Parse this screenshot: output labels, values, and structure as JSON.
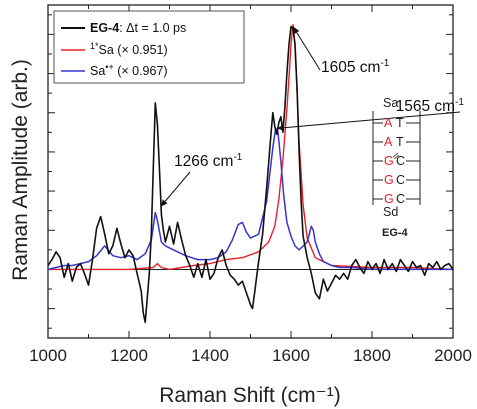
{
  "chart_data": {
    "type": "line",
    "xlabel": "Raman Shift (cm⁻¹)",
    "ylabel": "Raman Amplitude (arb.)",
    "xlim": [
      1000,
      2000
    ],
    "ylim": [
      -0.35,
      1.35
    ],
    "x_ticks": [
      "1000",
      "1200",
      "1400",
      "1600",
      "1800",
      "2000"
    ],
    "grid": false,
    "legend_position": "top-left",
    "y_tick_labels_shown": false,
    "zero_line": true,
    "series": [
      {
        "name_bold": "EG-4",
        "name_rest": ": Δt = 1.0 ps",
        "color": "#111111",
        "x": [
          1000,
          1010,
          1020,
          1030,
          1040,
          1050,
          1060,
          1070,
          1080,
          1090,
          1100,
          1110,
          1120,
          1130,
          1140,
          1150,
          1160,
          1170,
          1180,
          1190,
          1200,
          1210,
          1220,
          1230,
          1235,
          1240,
          1245,
          1250,
          1255,
          1260,
          1265,
          1270,
          1275,
          1280,
          1285,
          1290,
          1300,
          1310,
          1320,
          1330,
          1340,
          1350,
          1360,
          1370,
          1380,
          1390,
          1400,
          1410,
          1420,
          1430,
          1440,
          1450,
          1460,
          1470,
          1480,
          1490,
          1500,
          1505,
          1510,
          1520,
          1530,
          1540,
          1550,
          1555,
          1560,
          1565,
          1570,
          1575,
          1580,
          1585,
          1590,
          1595,
          1600,
          1605,
          1610,
          1615,
          1620,
          1625,
          1630,
          1640,
          1650,
          1660,
          1670,
          1680,
          1690,
          1700,
          1710,
          1720,
          1730,
          1740,
          1750,
          1760,
          1770,
          1780,
          1790,
          1800,
          1810,
          1820,
          1830,
          1840,
          1850,
          1860,
          1870,
          1880,
          1890,
          1900,
          1910,
          1920,
          1930,
          1940,
          1950,
          1960,
          1970,
          1980,
          1990,
          2000
        ],
        "y": [
          0.02,
          0.05,
          0.09,
          0.06,
          -0.04,
          0.03,
          -0.06,
          0.01,
          0.03,
          -0.02,
          -0.08,
          0.05,
          0.21,
          0.27,
          0.18,
          0.08,
          0.12,
          0.21,
          0.13,
          0.06,
          0.1,
          0.07,
          -0.02,
          -0.11,
          -0.22,
          -0.27,
          -0.15,
          -0.02,
          0.18,
          0.52,
          0.85,
          0.74,
          0.52,
          0.28,
          0.2,
          0.14,
          0.22,
          0.13,
          0.24,
          0.15,
          0.07,
          0.02,
          -0.04,
          0.03,
          -0.04,
          0.05,
          -0.05,
          -0.02,
          0.06,
          0.1,
          0.02,
          -0.03,
          -0.05,
          -0.08,
          -0.06,
          -0.12,
          -0.18,
          -0.2,
          -0.12,
          0.04,
          0.18,
          0.42,
          0.68,
          0.8,
          0.73,
          0.69,
          0.75,
          0.78,
          0.7,
          0.83,
          1.0,
          1.15,
          1.24,
          1.23,
          1.15,
          0.92,
          0.6,
          0.35,
          0.17,
          0.06,
          -0.02,
          -0.12,
          -0.15,
          -0.05,
          -0.11,
          -0.07,
          -0.03,
          -0.05,
          -0.02,
          -0.05,
          0.02,
          0.05,
          0.01,
          -0.02,
          0.04,
          0.0,
          0.03,
          -0.02,
          0.05,
          0.0,
          0.03,
          -0.01,
          0.05,
          0.02,
          -0.01,
          0.04,
          0.01,
          0.02,
          -0.03,
          0.03,
          0.01,
          0.04,
          0.0,
          0.02,
          0.03,
          0.0
        ]
      },
      {
        "name_sup": "1*",
        "name": "Sa (× 0.951)",
        "color": "#e8202a",
        "x": [
          1000,
          1100,
          1200,
          1260,
          1270,
          1280,
          1300,
          1360,
          1400,
          1440,
          1480,
          1520,
          1545,
          1560,
          1570,
          1580,
          1590,
          1595,
          1600,
          1605,
          1610,
          1615,
          1620,
          1630,
          1640,
          1660,
          1700,
          1800,
          1900,
          2000
        ],
        "y": [
          0.0,
          0.0,
          0.0,
          0.01,
          0.03,
          0.01,
          0.0,
          0.02,
          0.03,
          0.05,
          0.06,
          0.09,
          0.14,
          0.22,
          0.36,
          0.56,
          0.82,
          0.98,
          1.15,
          1.25,
          1.14,
          0.9,
          0.65,
          0.33,
          0.16,
          0.06,
          0.02,
          0.01,
          0.01,
          0.0
        ]
      },
      {
        "name": "Sa",
        "name_sup": "•+",
        "name_rest": " (× 0.967)",
        "color": "#3535d0",
        "x": [
          1000,
          1020,
          1040,
          1060,
          1080,
          1100,
          1120,
          1140,
          1160,
          1180,
          1200,
          1220,
          1240,
          1255,
          1265,
          1270,
          1280,
          1290,
          1310,
          1340,
          1370,
          1400,
          1420,
          1440,
          1455,
          1470,
          1480,
          1490,
          1500,
          1520,
          1540,
          1555,
          1562,
          1568,
          1575,
          1582,
          1590,
          1600,
          1610,
          1620,
          1640,
          1650,
          1655,
          1660,
          1670,
          1680,
          1700,
          1720,
          1750,
          1800,
          1900,
          2000
        ],
        "y": [
          0.0,
          0.01,
          0.02,
          0.02,
          0.03,
          0.04,
          0.07,
          0.12,
          0.07,
          0.06,
          0.07,
          0.05,
          0.08,
          0.15,
          0.29,
          0.25,
          0.14,
          0.12,
          0.1,
          0.07,
          0.05,
          0.05,
          0.06,
          0.09,
          0.15,
          0.23,
          0.24,
          0.19,
          0.16,
          0.18,
          0.35,
          0.62,
          0.72,
          0.7,
          0.55,
          0.38,
          0.24,
          0.17,
          0.12,
          0.1,
          0.14,
          0.22,
          0.2,
          0.14,
          0.08,
          0.04,
          0.02,
          0.01,
          0.01,
          0.0,
          0.0,
          0.0
        ]
      }
    ],
    "annotations": [
      {
        "text": "1605 cm",
        "sup": "-1",
        "x": 1605,
        "y": 1.24
      },
      {
        "text": "1565 cm",
        "sup": "-1",
        "x": 1565,
        "y": 0.72
      },
      {
        "text": "1266 cm",
        "sup": "-1",
        "x": 1278,
        "y": 0.32
      }
    ],
    "inset": {
      "title": "EG-4",
      "top_label": "Sa",
      "bottom_label": "Sd",
      "rows": [
        {
          "left": "A",
          "right": "T",
          "hydroxyl": false
        },
        {
          "left": "A",
          "right": "T",
          "hydroxyl": false
        },
        {
          "left": "G",
          "right": "C",
          "hydroxyl": true
        },
        {
          "left": "G",
          "right": "C",
          "hydroxyl": false
        },
        {
          "left": "G",
          "right": "C",
          "hydroxyl": false
        }
      ],
      "highlight_color": "#e8202a"
    }
  }
}
